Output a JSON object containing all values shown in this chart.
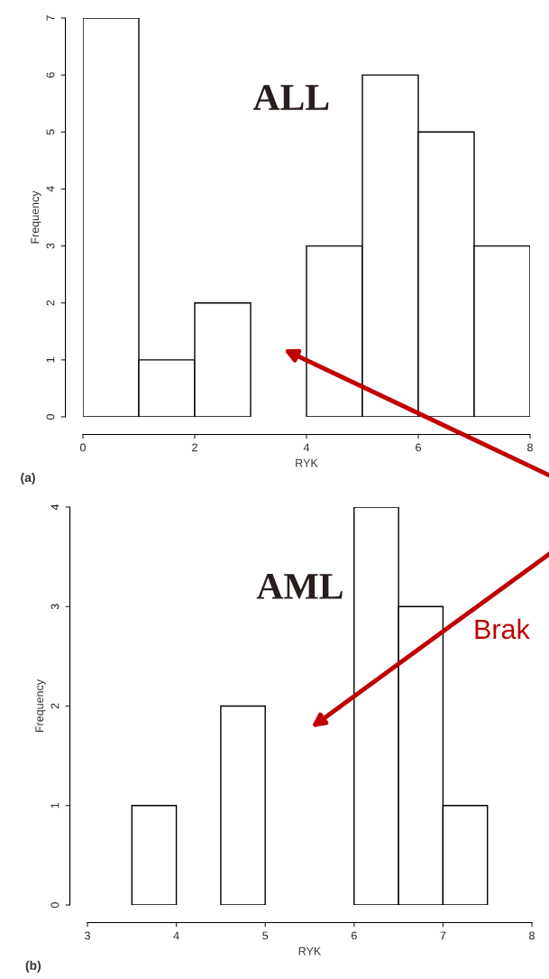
{
  "chart_data": [
    {
      "type": "histogram",
      "xlabel": "RYK",
      "ylabel": "Frequency",
      "bins": [
        0,
        1,
        2,
        3,
        4,
        5,
        6,
        7,
        8
      ],
      "values": [
        7,
        1,
        2,
        0,
        3,
        6,
        5,
        3
      ],
      "color": "#ffffff",
      "xlim": [
        0,
        8
      ],
      "xticks": [
        0,
        2,
        4,
        6,
        8
      ],
      "ylim": [
        0,
        7
      ],
      "yticks": [
        0,
        1,
        2,
        3,
        4,
        5,
        6,
        7
      ],
      "grid": false,
      "annotations": [
        "ALL",
        "(a)"
      ]
    },
    {
      "type": "histogram",
      "xlabel": "RYK",
      "ylabel": "Frequency",
      "bins": [
        3.5,
        4,
        4.5,
        5,
        5.5,
        6,
        6.5,
        7,
        7.5
      ],
      "values": [
        1,
        0,
        2,
        0,
        0,
        4,
        3,
        1
      ],
      "color": "#ffffff",
      "xlim": [
        3,
        8
      ],
      "xticks": [
        3,
        4,
        5,
        6,
        7,
        8
      ],
      "ylim": [
        0,
        4
      ],
      "yticks": [
        0,
        1,
        2,
        3,
        4
      ],
      "grid": false,
      "annotations": [
        "AML",
        "(b)",
        "Brak"
      ]
    }
  ]
}
